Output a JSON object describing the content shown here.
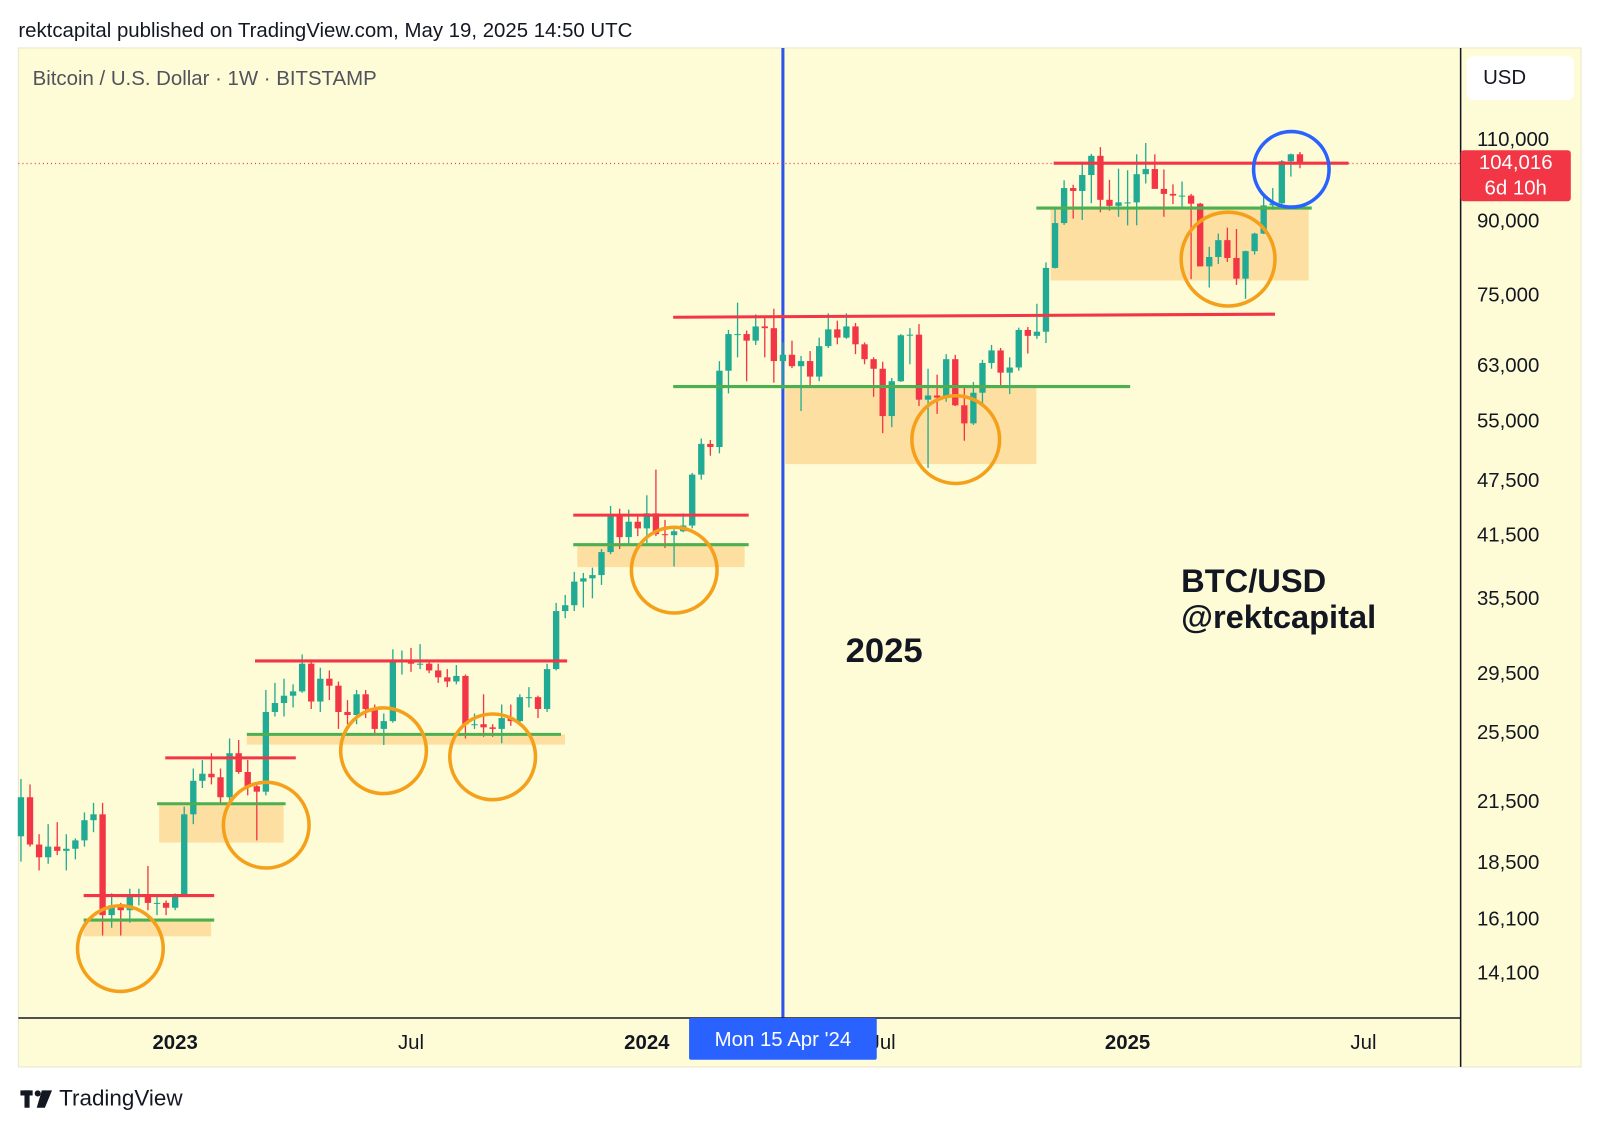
{
  "header": "rektcapital published on TradingView.com, May 19, 2025 14:50 UTC",
  "chart_data": {
    "type": "candlestick",
    "title": "Bitcoin / U.S. Dollar · 1W · BITSTAMP",
    "currency": "USD",
    "x": [
      "2022-09-05",
      "2022-09-12",
      "2022-09-19",
      "2022-09-26",
      "2022-10-03",
      "2022-10-10",
      "2022-10-17",
      "2022-10-24",
      "2022-10-31",
      "2022-11-07",
      "2022-11-14",
      "2022-11-21",
      "2022-11-28",
      "2022-12-05",
      "2022-12-12",
      "2022-12-19",
      "2022-12-26",
      "2023-01-02",
      "2023-01-09",
      "2023-01-16",
      "2023-01-23",
      "2023-01-30",
      "2023-02-06",
      "2023-02-13",
      "2023-02-20",
      "2023-02-27",
      "2023-03-06",
      "2023-03-13",
      "2023-03-20",
      "2023-03-27",
      "2023-04-03",
      "2023-04-10",
      "2023-04-17",
      "2023-04-24",
      "2023-05-01",
      "2023-05-08",
      "2023-05-15",
      "2023-05-22",
      "2023-05-29",
      "2023-06-05",
      "2023-06-12",
      "2023-06-19",
      "2023-06-26",
      "2023-07-03",
      "2023-07-10",
      "2023-07-17",
      "2023-07-24",
      "2023-07-31",
      "2023-08-07",
      "2023-08-14",
      "2023-08-21",
      "2023-08-28",
      "2023-09-04",
      "2023-09-11",
      "2023-09-18",
      "2023-09-25",
      "2023-10-02",
      "2023-10-09",
      "2023-10-16",
      "2023-10-23",
      "2023-10-30",
      "2023-11-06",
      "2023-11-13",
      "2023-11-20",
      "2023-11-27",
      "2023-12-04",
      "2023-12-11",
      "2023-12-18",
      "2023-12-25",
      "2024-01-01",
      "2024-01-08",
      "2024-01-15",
      "2024-01-22",
      "2024-01-29",
      "2024-02-05",
      "2024-02-12",
      "2024-02-19",
      "2024-02-26",
      "2024-03-04",
      "2024-03-11",
      "2024-03-18",
      "2024-03-25",
      "2024-04-01",
      "2024-04-08",
      "2024-04-15",
      "2024-04-22",
      "2024-04-29",
      "2024-05-06",
      "2024-05-13",
      "2024-05-20",
      "2024-05-27",
      "2024-06-03",
      "2024-06-10",
      "2024-06-17",
      "2024-06-24",
      "2024-07-01",
      "2024-07-08",
      "2024-07-15",
      "2024-07-22",
      "2024-07-29",
      "2024-08-05",
      "2024-08-12",
      "2024-08-19",
      "2024-08-26",
      "2024-09-02",
      "2024-09-09",
      "2024-09-16",
      "2024-09-23",
      "2024-09-30",
      "2024-10-07",
      "2024-10-14",
      "2024-10-21",
      "2024-10-28",
      "2024-11-04",
      "2024-11-11",
      "2024-11-18",
      "2024-11-25",
      "2024-12-02",
      "2024-12-09",
      "2024-12-16",
      "2024-12-23",
      "2024-12-30",
      "2025-01-06",
      "2025-01-13",
      "2025-01-20",
      "2025-01-27",
      "2025-02-03",
      "2025-02-10",
      "2025-02-17",
      "2025-02-24",
      "2025-03-03",
      "2025-03-10",
      "2025-03-17",
      "2025-03-24",
      "2025-03-31",
      "2025-04-07",
      "2025-04-14",
      "2025-04-21",
      "2025-04-28",
      "2025-05-05",
      "2025-05-12",
      "2025-05-19"
    ],
    "open": [
      19800,
      21800,
      19400,
      18800,
      19300,
      19100,
      19200,
      19600,
      20600,
      20900,
      16300,
      16700,
      16500,
      17100,
      17100,
      16800,
      16800,
      16600,
      17100,
      20900,
      22700,
      23100,
      22900,
      21800,
      24300,
      23200,
      22400,
      22100,
      26900,
      27500,
      28000,
      28300,
      30300,
      27600,
      29200,
      28700,
      26900,
      26700,
      28100,
      27100,
      25800,
      26300,
      30500,
      30500,
      30300,
      30300,
      29800,
      29300,
      29000,
      29400,
      26100,
      26100,
      25900,
      25800,
      26500,
      26300,
      27900,
      27900,
      27100,
      29900,
      34500,
      35000,
      37100,
      37400,
      37700,
      39900,
      43800,
      41400,
      43000,
      42300,
      43900,
      41700,
      41600,
      42000,
      42600,
      48300,
      52100,
      51700,
      62400,
      68300,
      68300,
      67200,
      69600,
      69300,
      63900,
      64900,
      63100,
      63900,
      61500,
      66300,
      69100,
      67700,
      69600,
      66600,
      64200,
      62700,
      55800,
      60800,
      68100,
      68200,
      58100,
      58700,
      58400,
      64200,
      57300,
      54800,
      59100,
      63600,
      65600,
      62100,
      62900,
      69000,
      68000,
      68700,
      80400,
      89800,
      97900,
      97200,
      101100,
      106000,
      95100,
      93700,
      94500,
      94500,
      101300,
      102600,
      97700,
      96500,
      96100,
      96100,
      94200,
      80700,
      82600,
      86100,
      82400,
      78300,
      83800,
      87500,
      93800,
      94300,
      104600,
      106400
    ],
    "high": [
      22800,
      22500,
      19900,
      20400,
      20500,
      19900,
      19700,
      21000,
      21500,
      21500,
      17200,
      16800,
      17400,
      17400,
      18400,
      17100,
      16900,
      17200,
      21300,
      23400,
      23900,
      24300,
      23400,
      25200,
      25100,
      23900,
      22600,
      28400,
      28900,
      29200,
      28800,
      31000,
      30500,
      30000,
      29800,
      29000,
      27700,
      28400,
      28400,
      27400,
      26800,
      31400,
      31300,
      31500,
      31800,
      30400,
      30300,
      29900,
      30200,
      29500,
      26800,
      28100,
      26100,
      27400,
      27400,
      28100,
      28600,
      28000,
      30300,
      35200,
      35900,
      38000,
      37900,
      38400,
      40200,
      44700,
      44400,
      44300,
      43800,
      45900,
      48900,
      43200,
      42200,
      43900,
      48500,
      52800,
      52600,
      63900,
      69000,
      73800,
      68900,
      71700,
      71300,
      72700,
      66900,
      67200,
      64700,
      65500,
      67700,
      71900,
      70600,
      71900,
      70200,
      66900,
      64500,
      63800,
      61300,
      68300,
      69300,
      70000,
      62700,
      61800,
      65000,
      64900,
      59800,
      60700,
      64100,
      66500,
      66000,
      64500,
      69400,
      69500,
      73600,
      81500,
      93500,
      99800,
      98700,
      104000,
      106500,
      108300,
      99900,
      102700,
      102300,
      106400,
      109400,
      106400,
      102500,
      98800,
      99500,
      96500,
      94400,
      84700,
      87500,
      88800,
      88500,
      83900,
      87700,
      95800,
      97900,
      104900,
      106600,
      107000
    ],
    "low": [
      18600,
      19300,
      18200,
      18500,
      18900,
      18200,
      18700,
      19300,
      20000,
      15500,
      15800,
      15500,
      16000,
      16700,
      16500,
      16300,
      16300,
      16500,
      17100,
      20400,
      22300,
      22500,
      21400,
      21500,
      23100,
      21900,
      19600,
      21900,
      26600,
      26600,
      27200,
      28200,
      27100,
      26900,
      27700,
      25800,
      26100,
      26100,
      26500,
      25400,
      24800,
      26200,
      29500,
      29700,
      29900,
      29600,
      28900,
      28600,
      28800,
      25200,
      25800,
      25300,
      25300,
      24900,
      26000,
      26000,
      27200,
      26500,
      26900,
      29800,
      33900,
      34500,
      34800,
      35600,
      36800,
      39700,
      40200,
      40600,
      41500,
      40800,
      41500,
      40300,
      38500,
      41900,
      42300,
      47700,
      50600,
      50900,
      59000,
      64500,
      60800,
      66500,
      64500,
      60600,
      59600,
      62800,
      56500,
      60200,
      60800,
      66000,
      66600,
      67500,
      65000,
      63400,
      58500,
      53500,
      54300,
      60700,
      63400,
      57200,
      49100,
      56100,
      57800,
      57200,
      52500,
      54600,
      57500,
      62700,
      59800,
      58900,
      62400,
      65100,
      67500,
      66800,
      80300,
      89400,
      90800,
      90500,
      94300,
      92200,
      92600,
      91200,
      89300,
      89300,
      99000,
      97800,
      91200,
      94100,
      93400,
      78200,
      81500,
      76600,
      81200,
      81600,
      77100,
      74500,
      83100,
      87400,
      92800,
      93400,
      100700,
      102800
    ],
    "close": [
      21800,
      19400,
      18800,
      19300,
      19100,
      19200,
      19600,
      20600,
      20900,
      16300,
      16700,
      16500,
      17100,
      17100,
      16800,
      16800,
      16600,
      17100,
      20900,
      22700,
      23100,
      22900,
      21800,
      24300,
      23200,
      22400,
      22100,
      26900,
      27500,
      28000,
      28300,
      30300,
      27600,
      29200,
      28700,
      26900,
      26700,
      28100,
      27100,
      25800,
      26300,
      30500,
      30500,
      30300,
      30300,
      29800,
      29300,
      29000,
      29400,
      26100,
      26100,
      25900,
      25800,
      26500,
      26300,
      27900,
      27900,
      27100,
      29900,
      34500,
      35000,
      37100,
      37400,
      37700,
      39900,
      43800,
      41400,
      43000,
      42300,
      43900,
      41700,
      41600,
      42000,
      42600,
      48300,
      52100,
      51700,
      62400,
      68300,
      68300,
      67200,
      69600,
      69300,
      63900,
      64900,
      63100,
      63900,
      61500,
      66300,
      69100,
      67700,
      69600,
      66600,
      64200,
      62700,
      55800,
      60800,
      68100,
      68200,
      58100,
      58700,
      58400,
      64200,
      57300,
      54800,
      59100,
      63600,
      65600,
      62100,
      62900,
      69000,
      68000,
      68700,
      80400,
      89800,
      97900,
      97200,
      101100,
      106000,
      95100,
      93700,
      94500,
      94500,
      101300,
      102600,
      97700,
      96500,
      96100,
      96100,
      94200,
      80700,
      82600,
      86100,
      82400,
      78300,
      83800,
      87500,
      93800,
      94300,
      104600,
      106400,
      104016
    ],
    "colors": {
      "up": "#22ab94",
      "down": "#f23645"
    },
    "xlim": [
      "2022-09-03",
      "2025-09-20"
    ],
    "xticks": [
      {
        "value": "2023-01-02",
        "label": "2023"
      },
      {
        "value": "2023-07-03",
        "label": "Jul"
      },
      {
        "value": "2024-01-01",
        "label": "2024"
      },
      {
        "value": "2024-07-01",
        "label": "Jul"
      },
      {
        "value": "2025-01-06",
        "label": "2025"
      },
      {
        "value": "2025-07-07",
        "label": "Jul"
      }
    ],
    "log_y": true,
    "ylim": [
      12650,
      138300
    ],
    "yticks": [
      {
        "value": 110000,
        "label": "110,000"
      },
      {
        "value": 90000,
        "label": "90,000"
      },
      {
        "value": 75000,
        "label": "75,000"
      },
      {
        "value": 63000,
        "label": "63,000"
      },
      {
        "value": 55000,
        "label": "55,000"
      },
      {
        "value": 47500,
        "label": "47,500"
      },
      {
        "value": 41500,
        "label": "41,500"
      },
      {
        "value": 35500,
        "label": "35,500"
      },
      {
        "value": 29500,
        "label": "29,500"
      },
      {
        "value": 25500,
        "label": "25,500"
      },
      {
        "value": 21500,
        "label": "21,500"
      },
      {
        "value": 18500,
        "label": "18,500"
      },
      {
        "value": 16100,
        "label": "16,100"
      },
      {
        "value": 14100,
        "label": "14,100"
      }
    ],
    "last_price": {
      "value": 104016,
      "label": "104,016",
      "countdown": "6d 10h"
    },
    "crosshair": {
      "x": "2024-04-15",
      "label": "Mon 15 Apr '24"
    },
    "annotations": [
      "2025",
      "BTC/USD",
      "@rektcapital"
    ]
  },
  "footer": "TradingView"
}
